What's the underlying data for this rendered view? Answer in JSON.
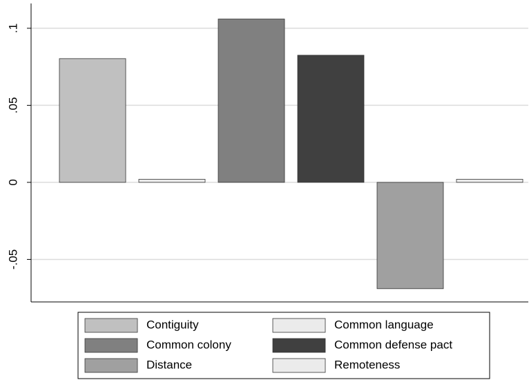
{
  "chart_data": {
    "type": "bar",
    "series": [
      {
        "name": "Contiguity",
        "color": "#c0c0c0",
        "values": [
          0.0803
        ]
      },
      {
        "name": "Common language",
        "color": "#ebebeb",
        "values": [
          0.002
        ]
      },
      {
        "name": "Common colony",
        "color": "#808080",
        "values": [
          0.106
        ]
      },
      {
        "name": "Common defense pact",
        "color": "#404040",
        "values": [
          0.0825
        ]
      },
      {
        "name": "Distance",
        "color": "#a0a0a0",
        "values": [
          -0.069
        ]
      },
      {
        "name": "Remoteness",
        "color": "#ebebeb",
        "values": [
          0.002
        ]
      }
    ],
    "ylim": [
      -0.0776,
      0.1161
    ],
    "yticks": [
      {
        "value": -0.05,
        "label": "-.05"
      },
      0,
      {
        "value": 0.05,
        "label": ".05"
      },
      {
        "value": 0.1,
        "label": ".1"
      }
    ],
    "grid": true,
    "legend": "bottom"
  }
}
